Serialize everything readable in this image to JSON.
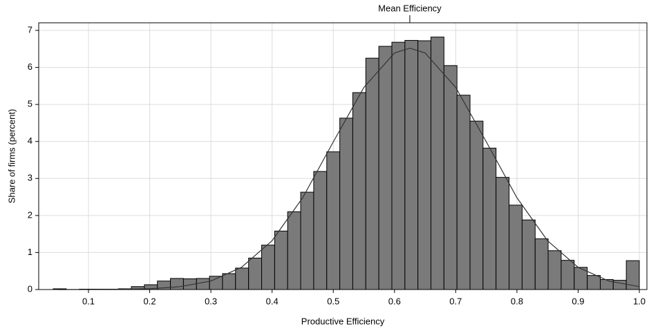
{
  "chart_data": {
    "type": "histogram",
    "x_label": "Productive Efficiency",
    "y_label": "Share of firms (percent)",
    "bins": [
      0.0424,
      0.0637,
      0.085,
      0.1062,
      0.1275,
      0.1488,
      0.1701,
      0.1914,
      0.2126,
      0.2339,
      0.2552,
      0.2765,
      0.2978,
      0.319,
      0.3403,
      0.3616,
      0.3829,
      0.4042,
      0.4254,
      0.4467,
      0.468,
      0.4893,
      0.5106,
      0.5318,
      0.5531,
      0.5744,
      0.5957,
      0.617,
      0.6382,
      0.6595,
      0.6808,
      0.7021,
      0.7234,
      0.7446,
      0.7659,
      0.7872,
      0.8085,
      0.8298,
      0.851,
      0.8723,
      0.8936,
      0.9149,
      0.9362,
      0.9574,
      0.9787,
      1.0
    ],
    "values": [
      0.02,
      0,
      0.01,
      0.01,
      0.01,
      0.02,
      0.08,
      0.13,
      0.23,
      0.3,
      0.29,
      0.3,
      0.36,
      0.43,
      0.58,
      0.85,
      1.2,
      1.58,
      2.1,
      2.63,
      3.19,
      3.72,
      4.63,
      5.32,
      6.25,
      6.57,
      6.68,
      6.73,
      6.72,
      6.82,
      6.05,
      5.25,
      4.55,
      3.82,
      3.03,
      2.28,
      1.88,
      1.37,
      1.05,
      0.79,
      0.6,
      0.38,
      0.27,
      0.25,
      0.78
    ],
    "color": "#7a7a7a",
    "curve": {
      "x": [
        0.05,
        0.1,
        0.15,
        0.2,
        0.25,
        0.3,
        0.35,
        0.4,
        0.45,
        0.5,
        0.55,
        0.6,
        0.625,
        0.65,
        0.7,
        0.75,
        0.8,
        0.85,
        0.9,
        0.95,
        1.0
      ],
      "values": [
        0,
        0.001,
        0.005,
        0.022,
        0.078,
        0.23,
        0.6,
        1.32,
        2.48,
        3.99,
        5.46,
        6.39,
        6.52,
        6.39,
        5.46,
        3.99,
        2.48,
        1.32,
        0.6,
        0.23,
        0.078
      ],
      "color": "#333333"
    },
    "annotation": {
      "text": "Mean Efficiency",
      "x": 0.625
    },
    "xlim": [
      0.0187,
      1.0124
    ],
    "ylim": [
      0,
      7.205
    ],
    "xticks": [
      0.1,
      0.2,
      0.3,
      0.4,
      0.5,
      0.6,
      0.7,
      0.8,
      0.9,
      {
        "value": 1,
        "label": "1.0"
      }
    ],
    "yticks": [
      0,
      1,
      2,
      3,
      4,
      5,
      6,
      7
    ],
    "grid": true
  }
}
